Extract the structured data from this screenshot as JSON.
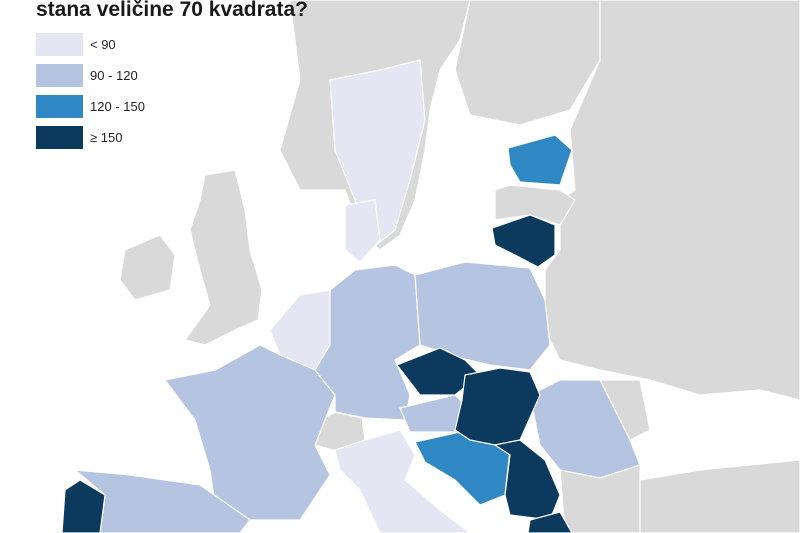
{
  "title": "stana veličine 70 kvadrata?",
  "legend": {
    "items": [
      {
        "label": "< 90",
        "color": "#e4e6f3"
      },
      {
        "label": "90 - 120",
        "color": "#b4c4e1"
      },
      {
        "label": "120 - 150",
        "color": "#2f88c4"
      },
      {
        "label": "≥ 150",
        "color": "#0b3a5e"
      }
    ]
  }
}
